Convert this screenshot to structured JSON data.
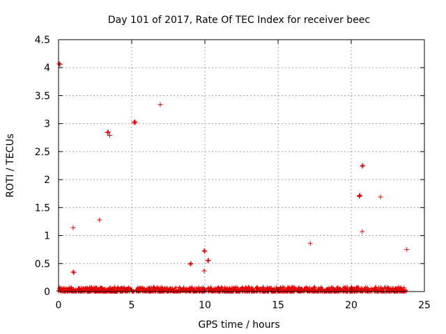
{
  "chart_data": {
    "type": "scatter",
    "title": "Day 101 of 2017, Rate Of TEC Index for receiver beec",
    "xlabel": "GPS time / hours",
    "ylabel": "ROTI / TECUs",
    "xlim": [
      0,
      25
    ],
    "ylim": [
      0,
      4.5
    ],
    "xticks": [
      0,
      5,
      10,
      15,
      20,
      25
    ],
    "xtick_labels": [
      "0",
      "5",
      "10",
      "15",
      "20",
      "25"
    ],
    "yticks": [
      0,
      0.5,
      1,
      1.5,
      2,
      2.5,
      3,
      3.5,
      4,
      4.5
    ],
    "ytick_labels": [
      "0",
      "0.5",
      "1",
      "1.5",
      "2",
      "2.5",
      "3",
      "3.5",
      "4",
      "4.5"
    ],
    "grid": true,
    "marker": "plus",
    "series": [
      {
        "name": "ROTI",
        "color": "#e00000",
        "points": [
          [
            0.05,
            4.07
          ],
          [
            0.1,
            4.06
          ],
          [
            1.0,
            1.14
          ],
          [
            1.0,
            0.35
          ],
          [
            1.05,
            0.34
          ],
          [
            2.8,
            1.28
          ],
          [
            3.4,
            2.85
          ],
          [
            3.35,
            2.84
          ],
          [
            3.5,
            2.79
          ],
          [
            5.2,
            3.03
          ],
          [
            5.25,
            3.02
          ],
          [
            5.15,
            3.02
          ],
          [
            6.95,
            3.34
          ],
          [
            9.0,
            0.49
          ],
          [
            9.05,
            0.5
          ],
          [
            9.95,
            0.37
          ],
          [
            9.95,
            0.73
          ],
          [
            10.0,
            0.72
          ],
          [
            10.25,
            0.56
          ],
          [
            10.2,
            0.55
          ],
          [
            17.2,
            0.86
          ],
          [
            20.55,
            1.71
          ],
          [
            20.6,
            1.72
          ],
          [
            20.55,
            1.7
          ],
          [
            20.75,
            2.24
          ],
          [
            20.8,
            2.25
          ],
          [
            20.75,
            1.07
          ],
          [
            22.0,
            1.69
          ],
          [
            23.8,
            0.75
          ]
        ],
        "baseline": {
          "x_range": [
            0,
            23.8
          ],
          "y_range": [
            0,
            0.08
          ],
          "description": "dense band of near-zero values"
        }
      }
    ]
  }
}
